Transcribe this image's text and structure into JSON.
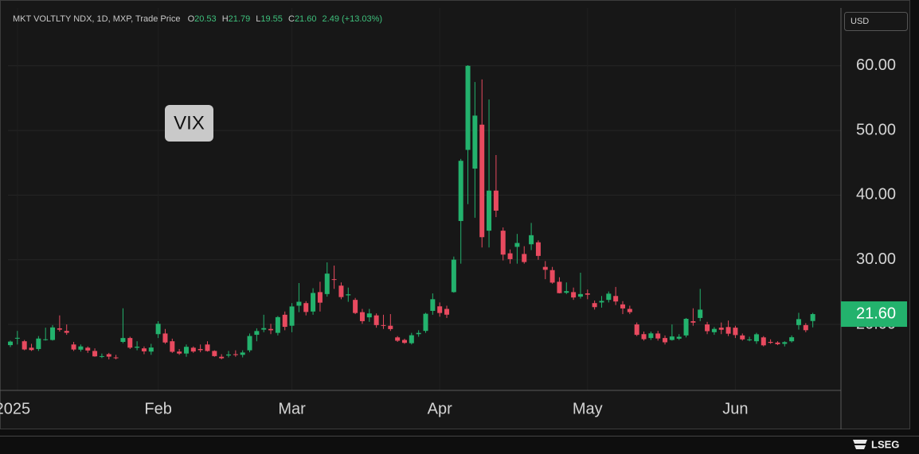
{
  "chart_data": {
    "type": "candlestick",
    "title": "VIX",
    "instrument": "MKT VOLTLTY NDX, 1D, MXP, Trade Price",
    "header_keys": [
      "O",
      "H",
      "L",
      "C"
    ],
    "change_label": "2.49 (+13.03%)",
    "currency": "USD",
    "last_close_label": "21.60",
    "up_color": "#23b26d",
    "down_color": "#e84a5f",
    "grid": true,
    "xlim": [
      -0.34,
      118
    ],
    "xticks": [
      {
        "value": 1,
        "label": "2025"
      },
      {
        "value": 21,
        "label": "Feb"
      },
      {
        "value": 40,
        "label": "Mar"
      },
      {
        "value": 61,
        "label": "Apr"
      },
      {
        "value": 82,
        "label": "May"
      },
      {
        "value": 103,
        "label": "Jun"
      }
    ],
    "ylim": [
      9.8,
      68.95
    ],
    "yticks": [
      {
        "value": 20,
        "label": "20.00"
      },
      {
        "value": 30,
        "label": "30.00"
      },
      {
        "value": 40,
        "label": "40.00"
      },
      {
        "value": 50,
        "label": "50.00"
      },
      {
        "value": 60,
        "label": "60.00"
      }
    ],
    "open": [
      16.8,
      17.9,
      17.4,
      16.4,
      16.2,
      17.7,
      17.6,
      19.4,
      19.0,
      16.9,
      16.1,
      16.4,
      15.9,
      15.1,
      15.4,
      14.9,
      17.3,
      17.9,
      16.4,
      16.3,
      15.8,
      18.5,
      18.6,
      17.4,
      15.8,
      15.5,
      16.4,
      16.2,
      16.9,
      15.9,
      15.0,
      15.2,
      15.4,
      15.3,
      16.0,
      18.4,
      19.2,
      19.3,
      18.7,
      21.5,
      19.8,
      22.9,
      23.3,
      22.0,
      25.0,
      24.7,
      27.0,
      26.0,
      24.5,
      23.8,
      21.9,
      21.1,
      21.4,
      19.9,
      19.8,
      18.0,
      17.6,
      17.1,
      18.5,
      19.0,
      22.1,
      22.8,
      22.4,
      25.0,
      36.0,
      47.0,
      44.1,
      50.9,
      34.5,
      40.7,
      34.5,
      31.0,
      32.0,
      30.9,
      32.4,
      32.7,
      28.9,
      28.4,
      26.6,
      24.9,
      25.0,
      24.3,
      24.8,
      23.3,
      23.4,
      23.8,
      24.4,
      23.1,
      22.4,
      20.0,
      18.5,
      17.9,
      18.6,
      17.9,
      17.6,
      17.8,
      18.3,
      20.5,
      21.0,
      20.0,
      18.8,
      19.5,
      19.6,
      19.5,
      18.3,
      17.6,
      17.4,
      18.0,
      17.3,
      17.2,
      17.0,
      17.4,
      19.9,
      19.9,
      20.53
    ],
    "high": [
      17.5,
      19.0,
      17.6,
      17.0,
      18.2,
      19.5,
      19.9,
      21.4,
      20.0,
      17.3,
      16.9,
      16.6,
      16.3,
      15.5,
      15.6,
      15.3,
      22.5,
      18.1,
      17.4,
      16.6,
      17.0,
      20.5,
      19.3,
      17.8,
      16.2,
      16.9,
      16.6,
      16.9,
      17.4,
      16.0,
      15.4,
      15.9,
      16.0,
      16.0,
      18.6,
      19.4,
      21.5,
      20.1,
      21.3,
      22.0,
      23.3,
      26.4,
      23.6,
      25.6,
      26.6,
      29.6,
      29.1,
      26.5,
      25.7,
      24.1,
      22.4,
      22.4,
      21.7,
      21.5,
      21.6,
      18.2,
      17.8,
      18.7,
      19.1,
      21.8,
      24.8,
      23.4,
      22.9,
      30.5,
      45.6,
      60.1,
      57.5,
      57.9,
      54.8,
      46.2,
      35.0,
      31.6,
      34.0,
      32.1,
      35.7,
      33.0,
      29.8,
      28.9,
      27.3,
      26.5,
      25.7,
      28.0,
      25.4,
      23.7,
      24.4,
      25.1,
      25.8,
      23.6,
      22.9,
      20.3,
      18.9,
      18.9,
      19.0,
      18.3,
      20.0,
      18.5,
      21.0,
      22.5,
      25.5,
      20.4,
      19.6,
      20.3,
      20.6,
      19.8,
      18.6,
      18.1,
      18.7,
      18.2,
      17.7,
      17.4,
      17.4,
      18.3,
      21.8,
      20.2,
      21.79
    ],
    "low": [
      16.5,
      16.9,
      16.0,
      15.9,
      15.9,
      17.5,
      17.5,
      18.9,
      18.4,
      15.9,
      15.8,
      15.6,
      15.0,
      14.8,
      14.6,
      14.6,
      17.1,
      16.2,
      16.0,
      15.4,
      15.3,
      17.9,
      17.0,
      15.6,
      15.3,
      15.0,
      15.6,
      15.7,
      15.8,
      15.0,
      14.6,
      14.9,
      15.0,
      14.9,
      15.7,
      17.4,
      18.8,
      18.5,
      18.3,
      19.1,
      18.8,
      21.9,
      21.4,
      21.5,
      22.0,
      24.3,
      25.5,
      23.9,
      23.5,
      21.6,
      20.1,
      20.4,
      19.5,
      19.3,
      19.0,
      17.3,
      17.0,
      16.9,
      18.1,
      18.7,
      21.5,
      21.2,
      21.0,
      24.9,
      29.4,
      38.6,
      36.5,
      31.9,
      31.9,
      36.6,
      29.9,
      29.4,
      29.4,
      29.4,
      31.5,
      30.0,
      27.0,
      26.3,
      24.8,
      24.7,
      23.8,
      24.0,
      23.9,
      22.3,
      22.6,
      23.4,
      23.0,
      21.6,
      21.6,
      18.2,
      17.5,
      17.6,
      17.5,
      16.9,
      17.5,
      17.6,
      18.0,
      19.8,
      20.5,
      18.5,
      18.4,
      18.5,
      18.2,
      17.9,
      17.5,
      17.4,
      17.0,
      16.6,
      17.0,
      16.8,
      16.6,
      17.2,
      19.2,
      18.8,
      19.55
    ],
    "close": [
      17.35,
      17.93,
      16.13,
      16.04,
      17.82,
      17.7,
      19.54,
      19.19,
      18.71,
      16.12,
      16.6,
      15.97,
      15.06,
      15.1,
      15.02,
      14.85,
      17.9,
      16.41,
      16.56,
      15.84,
      16.43,
      20.1,
      17.21,
      15.77,
      15.5,
      16.54,
      15.81,
      16.02,
      15.89,
      15.1,
      14.77,
      15.35,
      15.27,
      15.66,
      18.21,
      18.98,
      19.43,
      19.1,
      21.13,
      19.63,
      22.78,
      23.51,
      21.93,
      24.87,
      23.37,
      27.86,
      26.92,
      24.23,
      24.66,
      21.77,
      20.51,
      21.7,
      19.9,
      19.8,
      19.28,
      17.48,
      17.15,
      18.33,
      18.69,
      21.65,
      23.9,
      21.77,
      21.51,
      30.02,
      45.31,
      60.0,
      52.3,
      33.5,
      40.7,
      37.6,
      30.8,
      30.1,
      32.6,
      29.65,
      33.8,
      30.6,
      28.45,
      26.47,
      24.84,
      25.15,
      24.17,
      24.7,
      24.6,
      22.68,
      23.64,
      24.76,
      23.55,
      22.48,
      21.9,
      18.39,
      17.72,
      18.62,
      17.83,
      17.24,
      18.14,
      18.09,
      20.87,
      20.28,
      22.29,
      18.96,
      19.31,
      19.18,
      18.57,
      18.36,
      17.69,
      17.68,
      18.48,
      16.77,
      17.16,
      16.95,
      17.26,
      18.02,
      20.82,
      19.11,
      21.6
    ]
  },
  "brand": "LSEG"
}
